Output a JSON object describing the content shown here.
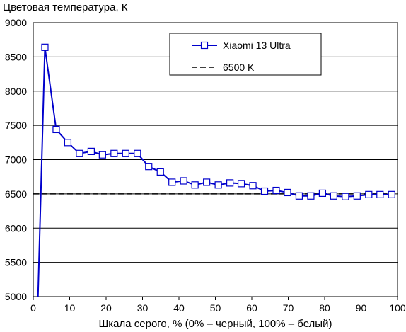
{
  "chart_data": {
    "type": "line",
    "title": "Цветовая температура, К",
    "xlabel": "Шкала серого, % (0% – черный, 100% – белый)",
    "ylabel": "",
    "xlim": [
      0,
      100
    ],
    "ylim": [
      5000,
      9000
    ],
    "xticks": [
      "0",
      "10",
      "20",
      "30",
      "40",
      "50",
      "60",
      "70",
      "80",
      "90",
      "100"
    ],
    "yticks": [
      "5000",
      "5500",
      "6000",
      "6500",
      "7000",
      "7500",
      "8000",
      "8500",
      "9000"
    ],
    "grid": "horizontal",
    "legend_position": "top-right",
    "series": [
      {
        "name": "Xiaomi 13 Ultra",
        "color": "#0000cc",
        "marker": "square",
        "x": [
          1.3,
          3.2,
          6.3,
          9.5,
          12.7,
          15.9,
          19.0,
          22.2,
          25.4,
          28.6,
          31.7,
          34.9,
          38.1,
          41.3,
          44.4,
          47.6,
          50.8,
          54.0,
          57.1,
          60.3,
          63.5,
          66.7,
          69.8,
          73.0,
          76.2,
          79.4,
          82.5,
          85.7,
          88.9,
          92.1,
          95.2,
          98.4
        ],
        "y": [
          4990,
          8640,
          7440,
          7250,
          7090,
          7120,
          7070,
          7090,
          7090,
          7090,
          6900,
          6820,
          6670,
          6690,
          6630,
          6670,
          6630,
          6660,
          6650,
          6620,
          6540,
          6550,
          6520,
          6470,
          6470,
          6510,
          6470,
          6460,
          6470,
          6490,
          6490,
          6490
        ],
        "markers_from_index": 1
      },
      {
        "name": "6500 K",
        "color": "#000000",
        "dash": true,
        "x": [
          0,
          100
        ],
        "y": [
          6500,
          6500
        ]
      }
    ]
  }
}
